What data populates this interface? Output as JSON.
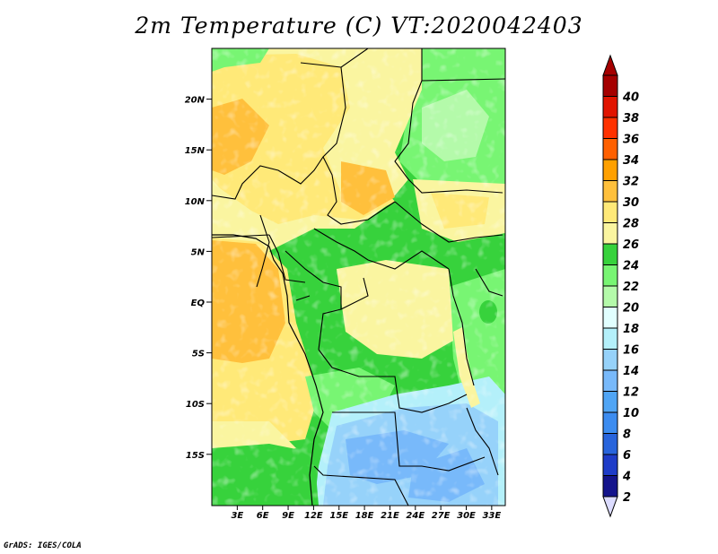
{
  "title": "2m Temperature (C) VT:2020042403",
  "credit": "GrADS: IGES/COLA",
  "lat_ticks": [
    {
      "label": "20N",
      "value": 20
    },
    {
      "label": "15N",
      "value": 15
    },
    {
      "label": "10N",
      "value": 10
    },
    {
      "label": "5N",
      "value": 5
    },
    {
      "label": "EQ",
      "value": 0
    },
    {
      "label": "5S",
      "value": -5
    },
    {
      "label": "10S",
      "value": -10
    },
    {
      "label": "15S",
      "value": -15
    }
  ],
  "lon_ticks": [
    {
      "label": "3E",
      "value": 3
    },
    {
      "label": "6E",
      "value": 6
    },
    {
      "label": "9E",
      "value": 9
    },
    {
      "label": "12E",
      "value": 12
    },
    {
      "label": "15E",
      "value": 15
    },
    {
      "label": "18E",
      "value": 18
    },
    {
      "label": "21E",
      "value": 21
    },
    {
      "label": "24E",
      "value": 24
    },
    {
      "label": "27E",
      "value": 27
    },
    {
      "label": "30E",
      "value": 30
    },
    {
      "label": "33E",
      "value": 33
    }
  ],
  "colorbar": {
    "levels": [
      "2",
      "4",
      "6",
      "8",
      "10",
      "12",
      "14",
      "16",
      "18",
      "20",
      "22",
      "24",
      "26",
      "28",
      "30",
      "32",
      "34",
      "36",
      "38",
      "40"
    ],
    "colors": [
      "#14148c",
      "#1e3cc8",
      "#2864dc",
      "#3c8cf0",
      "#50a5f5",
      "#78b9fa",
      "#96d2fa",
      "#b4f0fa",
      "#e1ffff",
      "#b4faaa",
      "#78f573",
      "#37d23c",
      "#faf5a0",
      "#ffe978",
      "#ffc03c",
      "#ffa000",
      "#ff6000",
      "#ff3200",
      "#e11400",
      "#a50000"
    ],
    "under_color": "#dcdcff",
    "over_color": "#a50000"
  }
}
